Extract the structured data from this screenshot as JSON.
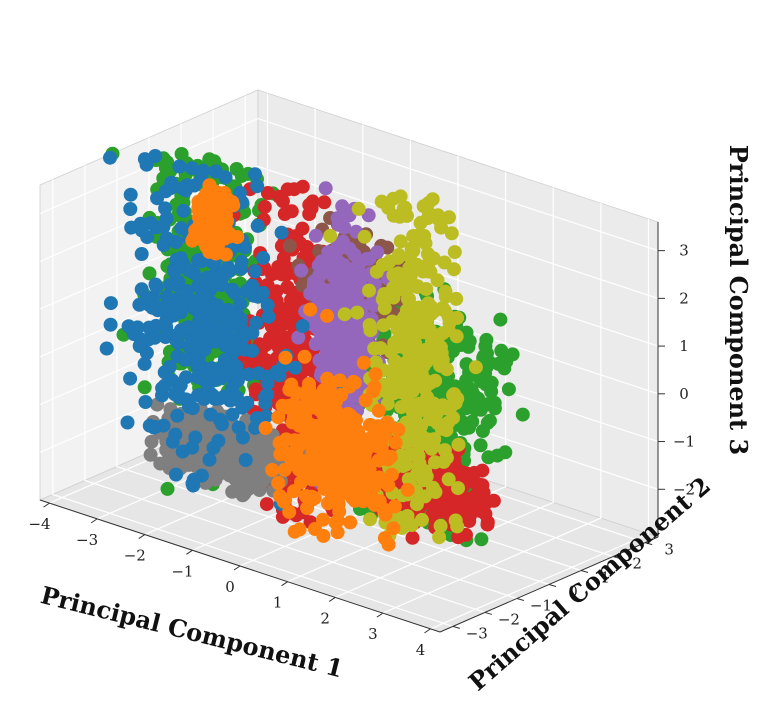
{
  "chart_data": {
    "type": "scatter",
    "projection": "3d",
    "xlabel": "Principal Component 1",
    "ylabel": "Principal Component 2",
    "zlabel": "Principal Component 3",
    "x_ticks": [
      "−4",
      "−3",
      "−2",
      "−1",
      "0",
      "1",
      "2",
      "3",
      "4"
    ],
    "y_ticks": [
      "−3",
      "−2",
      "−1",
      "0",
      "1",
      "2",
      "3"
    ],
    "z_ticks": [
      "−2",
      "−1",
      "0",
      "1",
      "2",
      "3"
    ],
    "xlim": [
      -4.2,
      4.2
    ],
    "ylim": [
      -3.4,
      3.4
    ],
    "zlim": [
      -3.0,
      3.6
    ],
    "grid": true,
    "series": [
      {
        "color": "#2ca02c",
        "clusters": [
          [
            -2.6,
            -0.6,
            1.4,
            0.5,
            0.35,
            1.5
          ],
          [
            1.6,
            -0.4,
            -1.6,
            0.5,
            0.3,
            0.35
          ],
          [
            0.9,
            1.4,
            -0.6,
            0.55,
            0.45,
            0.8
          ]
        ]
      },
      {
        "color": "#d62728",
        "clusters": [
          [
            -0.9,
            -0.4,
            0.2,
            0.35,
            0.35,
            1.7
          ],
          [
            2.9,
            -1.9,
            -0.8,
            0.6,
            0.25,
            0.35
          ]
        ]
      },
      {
        "color": "#8c564b",
        "clusters": [
          [
            -0.7,
            1.2,
            1.3,
            0.4,
            0.35,
            0.4
          ]
        ]
      },
      {
        "color": "#9467bd",
        "clusters": [
          [
            -0.6,
            0.7,
            0.4,
            0.25,
            0.25,
            1.1
          ]
        ]
      },
      {
        "color": "#7f7f7f",
        "clusters": [
          [
            -1.6,
            -1.6,
            -1.7,
            0.55,
            0.35,
            0.3
          ]
        ]
      },
      {
        "color": "#bcbd22",
        "clusters": [
          [
            1.0,
            0.5,
            0.3,
            0.4,
            0.4,
            1.8
          ]
        ]
      },
      {
        "color": "#1f77b4",
        "clusters": [
          [
            -2.8,
            -0.4,
            0.4,
            0.8,
            0.45,
            1.5
          ]
        ]
      },
      {
        "color": "#ff7f0e",
        "clusters": [
          [
            0.3,
            -0.9,
            -1.2,
            0.55,
            0.45,
            0.75
          ],
          [
            -2.3,
            -0.8,
            2.7,
            0.12,
            0.12,
            0.25
          ]
        ]
      }
    ]
  }
}
